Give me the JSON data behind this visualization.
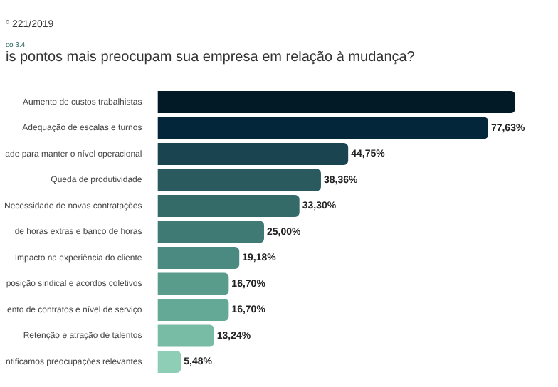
{
  "chart_data": {
    "type": "bar",
    "orientation": "horizontal",
    "title": "is pontos mais preocupam sua empresa em relação à mudança?",
    "annotations": [
      "º 221/2019",
      "co 3.4"
    ],
    "categories": [
      "Aumento de custos trabalhistas",
      "Adequação de escalas e turnos",
      "ade para manter o nível operacional",
      "Queda de produtividade",
      "Necessidade de novas contratações",
      "de horas extras e banco de horas",
      "Impacto na experiência do cliente",
      "posição sindical e acordos coletivos",
      "ento de contratos e nível de serviço",
      "Retenção e atração de talentos",
      "ntificamos preocupações relevantes"
    ],
    "values": [
      84,
      77.63,
      44.75,
      38.36,
      33.3,
      25.0,
      19.18,
      16.7,
      16.7,
      13.24,
      5.48
    ],
    "value_labels": [
      null,
      "77,63%",
      "44,75%",
      "38,36%",
      "33,30%",
      "25,00%",
      "19,18%",
      "16,70%",
      "16,70%",
      "13,24%",
      "5,48%"
    ],
    "colors": [
      "#021a26",
      "#04263a",
      "#1a4450",
      "#2a5a5e",
      "#346a68",
      "#3f7a74",
      "#4b8a80",
      "#5a9c8c",
      "#64a896",
      "#79bca6",
      "#8ecdb6"
    ],
    "legend": false
  }
}
